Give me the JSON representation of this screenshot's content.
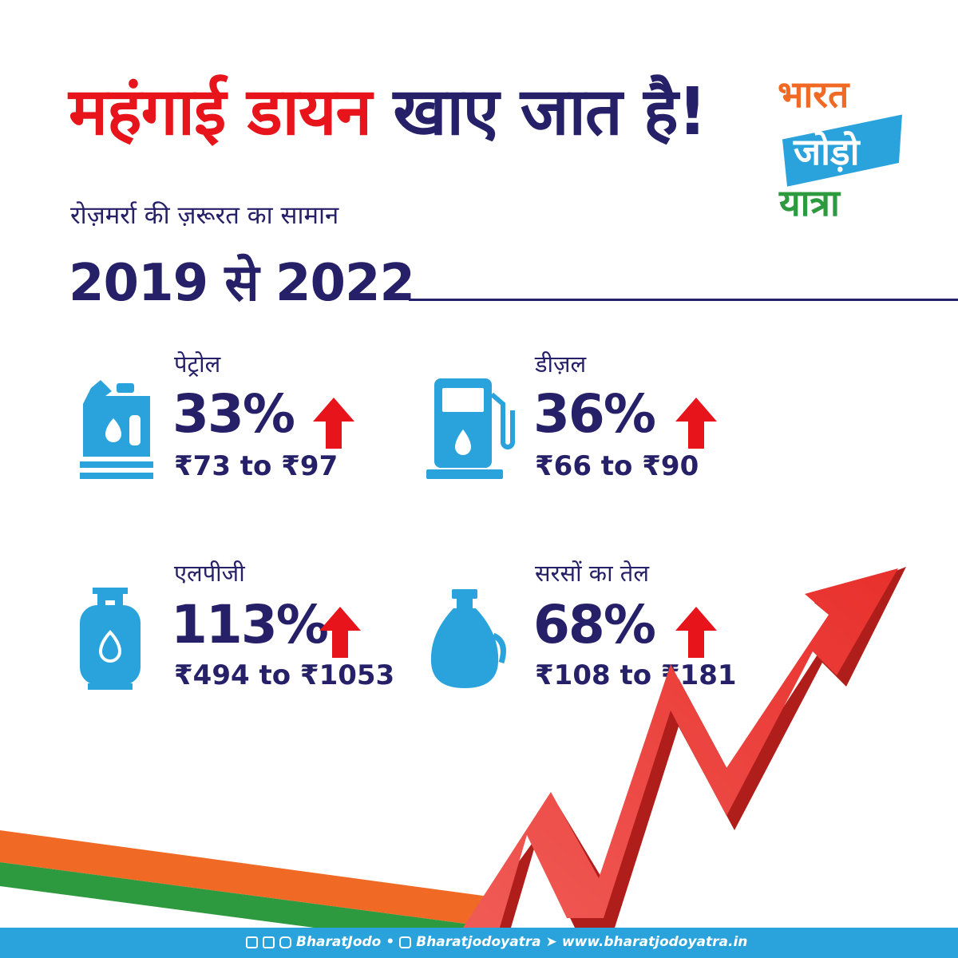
{
  "title": {
    "part1": "महंगाई डायन",
    "part2": "खाए जात है!"
  },
  "logo": {
    "line1": "भारत",
    "line2": "जोड़ो",
    "line3": "यात्रा"
  },
  "subtitle": "रोज़मर्रा की ज़रूरत का सामान",
  "years": "2019 से 2022",
  "items": [
    {
      "label": "पेट्रोल",
      "percent": "33%",
      "range": "₹73 to ₹97",
      "icon": "fuel-can-icon"
    },
    {
      "label": "डीज़ल",
      "percent": "36%",
      "range": "₹66 to ₹90",
      "icon": "fuel-pump-icon"
    },
    {
      "label": "एलपीजी",
      "percent": "113%",
      "range": "₹494 to ₹1053",
      "icon": "gas-cylinder-icon"
    },
    {
      "label": "सरसों का तेल",
      "percent": "68%",
      "range": "₹108 to ₹181",
      "icon": "oil-jug-icon"
    }
  ],
  "footer": {
    "handle": "BharatJodo",
    "separator": "•",
    "youtube": "Bharatjodoyatra",
    "website": "www.bharatjodoyatra.in"
  },
  "colors": {
    "red": "#e8141c",
    "navy": "#252068",
    "icon_blue": "#2aa3dc",
    "saffron": "#f06a25",
    "green": "#2e9a3f"
  }
}
